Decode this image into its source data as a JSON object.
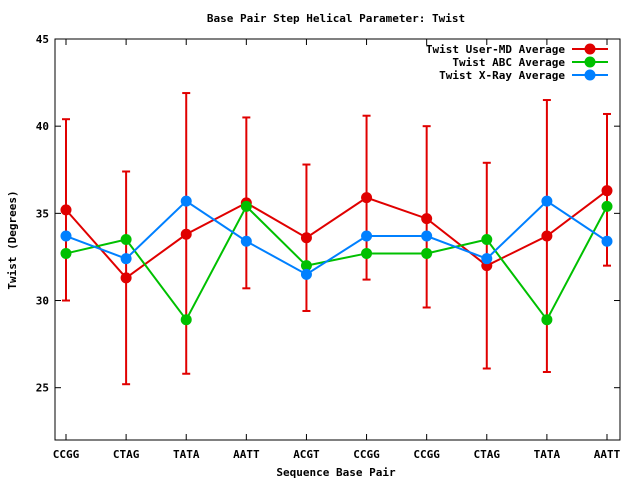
{
  "chart_data": {
    "type": "line",
    "title": "Base Pair Step Helical Parameter: Twist",
    "xlabel": "Sequence Base Pair",
    "ylabel": "Twist (Degrees)",
    "categories": [
      "CCGG",
      "CTAG",
      "TATA",
      "AATT",
      "ACGT",
      "CCGG",
      "CCGG",
      "CTAG",
      "TATA",
      "AATT"
    ],
    "ylim": [
      22,
      45
    ],
    "yticks": [
      25,
      30,
      35,
      40,
      45
    ],
    "legend_position": "top-right",
    "series": [
      {
        "name": "Twist User-MD Average",
        "color": "#e00000",
        "values": [
          35.2,
          31.3,
          33.8,
          35.6,
          33.6,
          35.9,
          34.7,
          32.0,
          33.7,
          36.3
        ],
        "error_low": [
          30.0,
          25.2,
          25.8,
          30.7,
          29.4,
          31.2,
          29.6,
          26.1,
          25.9,
          32.0
        ],
        "error_high": [
          40.4,
          37.4,
          41.9,
          40.5,
          37.8,
          40.6,
          40.0,
          37.9,
          41.5,
          40.7
        ]
      },
      {
        "name": "Twist ABC Average",
        "color": "#00c000",
        "values": [
          32.7,
          33.5,
          28.9,
          35.4,
          32.0,
          32.7,
          32.7,
          33.5,
          28.9,
          35.4
        ]
      },
      {
        "name": "Twist X-Ray Average",
        "color": "#0080ff",
        "values": [
          33.7,
          32.4,
          35.7,
          33.4,
          31.5,
          33.7,
          33.7,
          32.4,
          35.7,
          33.4
        ]
      }
    ]
  }
}
